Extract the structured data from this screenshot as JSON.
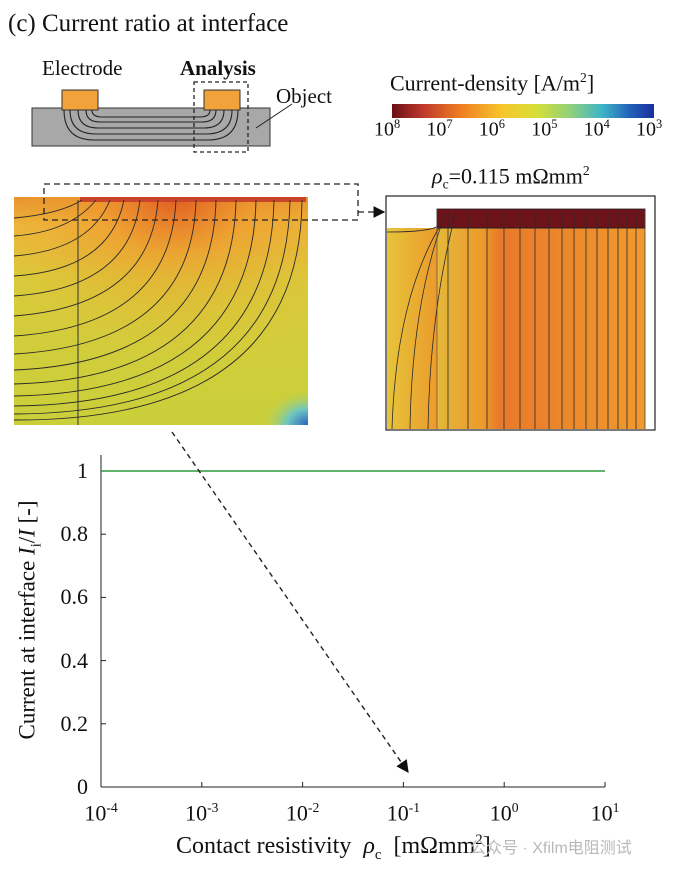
{
  "figure": {
    "title": "(c) Current ratio at interface",
    "schematic": {
      "electrode_label": "Electrode",
      "analysis_label": "Analysis",
      "object_label": "Object"
    },
    "colorbar": {
      "title_main": "Current-density [A/m",
      "title_sup": "2",
      "title_close": "]",
      "ticks": [
        {
          "base": "10",
          "exp": "8"
        },
        {
          "base": "10",
          "exp": "7"
        },
        {
          "base": "10",
          "exp": "6"
        },
        {
          "base": "10",
          "exp": "5"
        },
        {
          "base": "10",
          "exp": "4"
        },
        {
          "base": "10",
          "exp": "3"
        }
      ],
      "colors": [
        "#6b1016",
        "#c0392b",
        "#ef7d22",
        "#f7c52a",
        "#d7df38",
        "#8fd07a",
        "#3fb6c7",
        "#2160b8",
        "#1a2e9e"
      ]
    },
    "zoom_label": {
      "symbol": "ρ",
      "sub": "c",
      "value": "=0.115 mΩmm",
      "sup": "2"
    }
  },
  "chart_data": {
    "type": "line",
    "title": "",
    "xlabel": {
      "text": "Contact resistivity",
      "symbol": "ρ",
      "sub": "c",
      "unit_open": "[mΩmm",
      "unit_sup": "2",
      "unit_close": "]"
    },
    "ylabel": {
      "prefix": "Current at interface ",
      "var1": "I",
      "sub": "i",
      "slash": "/",
      "var2": "I",
      "unit": " [-]"
    },
    "x_scale": "log",
    "xlim": [
      0.0001,
      10
    ],
    "ylim": [
      0,
      1
    ],
    "x_ticks": [
      {
        "base": "10",
        "exp": "-4"
      },
      {
        "base": "10",
        "exp": "-3"
      },
      {
        "base": "10",
        "exp": "-2"
      },
      {
        "base": "10",
        "exp": "-1"
      },
      {
        "base": "10",
        "exp": "0"
      },
      {
        "base": "10",
        "exp": "1"
      }
    ],
    "y_ticks": [
      "0",
      "0.2",
      "0.4",
      "0.6",
      "0.8",
      "1"
    ],
    "series": [
      {
        "name": "Current ratio",
        "color": "#2e9a3a",
        "x": [
          0.0001,
          0.001,
          0.01,
          0.1,
          1,
          10
        ],
        "y": [
          1,
          1,
          1,
          1,
          1,
          1
        ]
      }
    ]
  },
  "watermark": "公众号 · Xfilm电阻测试"
}
